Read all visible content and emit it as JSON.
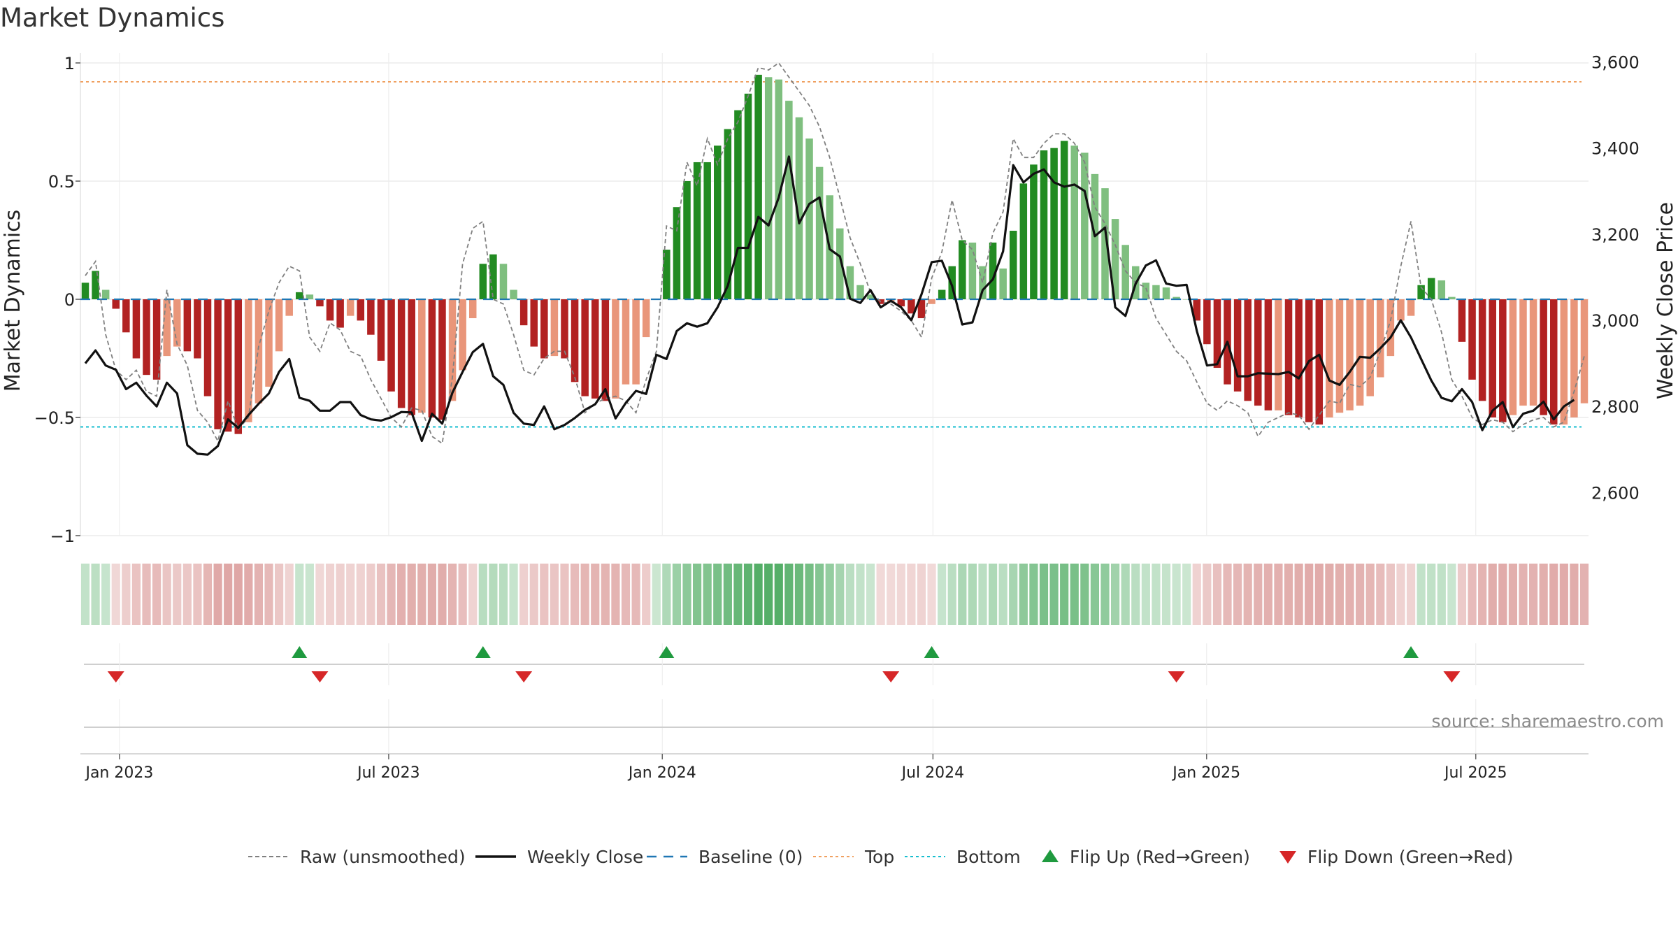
{
  "title": "Market Dynamics",
  "source": "source: sharemaestro.com",
  "colors": {
    "strong_green": "#228b22",
    "light_green": "#7fbf7f",
    "strong_red": "#b22222",
    "light_red": "#e9967a",
    "top_line": "#f0a060",
    "bottom_line": "#17becf",
    "baseline": "#1f77b4",
    "raw": "#808080",
    "close": "#111111",
    "flip_up": "#1f9a3f",
    "flip_down": "#d62728"
  },
  "chart_data": {
    "type": "bar",
    "left_axis": {
      "label": "Market Dynamics",
      "range": [
        -1,
        1
      ],
      "ticks": [
        1,
        0.5,
        0,
        -0.5,
        -1
      ],
      "tick_labels": [
        "1",
        "0.5",
        "0",
        "−0.5",
        "−1"
      ]
    },
    "right_axis": {
      "label": "Weekly Close Price",
      "range": [
        2500,
        3620
      ],
      "ticks": [
        3600,
        3400,
        3200,
        3000,
        2800,
        2600
      ],
      "tick_labels": [
        "3,600",
        "3,400",
        "3,200",
        "3,000",
        "2,800",
        "2,600"
      ]
    },
    "x_axis": {
      "start": "2022-12-09",
      "end": "2025-09-12",
      "ticks": [
        "2023-01-01",
        "2023-07-01",
        "2024-01-01",
        "2024-07-01",
        "2025-01-01",
        "2025-07-01"
      ],
      "tick_labels": [
        "Jan 2023",
        "Jul 2023",
        "Jan 2024",
        "Jul 2024",
        "Jan 2025",
        "Jul 2025"
      ]
    },
    "reference_lines": {
      "top": 0.92,
      "bottom": -0.54,
      "baseline": 0
    },
    "smoothed": [
      0.07,
      0.12,
      0.04,
      -0.04,
      -0.14,
      -0.25,
      -0.32,
      -0.34,
      -0.24,
      -0.2,
      -0.22,
      -0.25,
      -0.41,
      -0.55,
      -0.56,
      -0.57,
      -0.52,
      -0.44,
      -0.37,
      -0.22,
      -0.07,
      0.03,
      0.02,
      -0.03,
      -0.09,
      -0.12,
      -0.07,
      -0.09,
      -0.15,
      -0.26,
      -0.39,
      -0.46,
      -0.49,
      -0.48,
      -0.5,
      -0.51,
      -0.43,
      -0.3,
      -0.08,
      0.15,
      0.19,
      0.15,
      0.04,
      -0.11,
      -0.2,
      -0.25,
      -0.24,
      -0.25,
      -0.35,
      -0.41,
      -0.42,
      -0.43,
      -0.42,
      -0.36,
      -0.36,
      -0.16,
      0.0,
      0.21,
      0.39,
      0.5,
      0.58,
      0.58,
      0.65,
      0.72,
      0.8,
      0.87,
      0.95,
      0.94,
      0.93,
      0.84,
      0.77,
      0.68,
      0.56,
      0.44,
      0.3,
      0.14,
      0.06,
      0.02,
      -0.02,
      -0.01,
      -0.03,
      -0.06,
      -0.08,
      -0.02,
      0.04,
      0.14,
      0.25,
      0.24,
      0.14,
      0.24,
      0.13,
      0.29,
      0.49,
      0.57,
      0.63,
      0.64,
      0.67,
      0.65,
      0.62,
      0.53,
      0.47,
      0.34,
      0.23,
      0.14,
      0.07,
      0.06,
      0.05,
      0.01,
      0.0,
      -0.09,
      -0.19,
      -0.29,
      -0.36,
      -0.39,
      -0.43,
      -0.45,
      -0.47,
      -0.47,
      -0.49,
      -0.5,
      -0.52,
      -0.53,
      -0.5,
      -0.48,
      -0.47,
      -0.45,
      -0.41,
      -0.33,
      -0.24,
      -0.09,
      -0.07,
      0.06,
      0.09,
      0.08,
      0.01,
      -0.18,
      -0.34,
      -0.43,
      -0.5,
      -0.52,
      -0.49,
      -0.45,
      -0.45,
      -0.49,
      -0.53,
      -0.53,
      -0.5,
      -0.44
    ],
    "raw": [
      0.1,
      0.16,
      -0.15,
      -0.3,
      -0.34,
      -0.3,
      -0.39,
      -0.41,
      0.04,
      -0.19,
      -0.28,
      -0.47,
      -0.52,
      -0.6,
      -0.43,
      -0.55,
      -0.5,
      -0.2,
      -0.05,
      0.07,
      0.14,
      0.12,
      -0.16,
      -0.22,
      -0.1,
      -0.13,
      -0.22,
      -0.24,
      -0.34,
      -0.42,
      -0.5,
      -0.54,
      -0.46,
      -0.47,
      -0.58,
      -0.61,
      -0.33,
      0.15,
      0.3,
      0.33,
      0.0,
      -0.02,
      -0.15,
      -0.3,
      -0.32,
      -0.25,
      -0.22,
      -0.22,
      -0.33,
      -0.48,
      -0.44,
      -0.42,
      -0.41,
      -0.43,
      -0.48,
      -0.34,
      -0.22,
      0.31,
      0.29,
      0.58,
      0.48,
      0.68,
      0.57,
      0.68,
      0.75,
      0.86,
      0.98,
      0.97,
      1.0,
      0.94,
      0.88,
      0.82,
      0.73,
      0.6,
      0.43,
      0.26,
      0.15,
      0.03,
      -0.01,
      -0.02,
      -0.05,
      -0.09,
      -0.16,
      0.09,
      0.2,
      0.42,
      0.25,
      0.21,
      0.07,
      0.28,
      0.37,
      0.68,
      0.6,
      0.6,
      0.66,
      0.7,
      0.7,
      0.66,
      0.58,
      0.39,
      0.32,
      0.23,
      0.12,
      0.07,
      0.05,
      -0.08,
      -0.15,
      -0.22,
      -0.26,
      -0.35,
      -0.44,
      -0.47,
      -0.43,
      -0.45,
      -0.48,
      -0.58,
      -0.52,
      -0.5,
      -0.48,
      -0.49,
      -0.55,
      -0.49,
      -0.43,
      -0.44,
      -0.36,
      -0.37,
      -0.33,
      -0.22,
      -0.09,
      0.14,
      0.33,
      0.05,
      0.0,
      -0.14,
      -0.34,
      -0.41,
      -0.5,
      -0.53,
      -0.51,
      -0.52,
      -0.56,
      -0.53,
      -0.51,
      -0.5,
      -0.54,
      -0.52,
      -0.39,
      -0.24
    ],
    "weekly_close": [
      2900,
      2930,
      2895,
      2885,
      2840,
      2855,
      2825,
      2800,
      2855,
      2830,
      2710,
      2690,
      2688,
      2708,
      2770,
      2750,
      2780,
      2806,
      2830,
      2880,
      2910,
      2820,
      2813,
      2790,
      2790,
      2810,
      2810,
      2780,
      2770,
      2767,
      2775,
      2787,
      2786,
      2720,
      2783,
      2760,
      2832,
      2880,
      2926,
      2945,
      2870,
      2850,
      2785,
      2760,
      2757,
      2800,
      2747,
      2757,
      2773,
      2792,
      2805,
      2840,
      2772,
      2808,
      2836,
      2829,
      2920,
      2910,
      2975,
      2993,
      2985,
      2993,
      3030,
      3080,
      3168,
      3168,
      3240,
      3220,
      3285,
      3380,
      3225,
      3270,
      3285,
      3165,
      3148,
      3050,
      3040,
      3070,
      3030,
      3045,
      3030,
      3000,
      3060,
      3135,
      3138,
      3080,
      2990,
      2995,
      3070,
      3095,
      3160,
      3360,
      3320,
      3340,
      3350,
      3320,
      3310,
      3315,
      3300,
      3195,
      3215,
      3030,
      3010,
      3085,
      3127,
      3139,
      3085,
      3080,
      3082,
      2975,
      2895,
      2898,
      2950,
      2870,
      2870,
      2877,
      2876,
      2875,
      2880,
      2865,
      2905,
      2920,
      2860,
      2850,
      2880,
      2915,
      2913,
      2935,
      2960,
      3000,
      2960,
      2910,
      2860,
      2820,
      2812,
      2840,
      2810,
      2745,
      2790,
      2810,
      2752,
      2783,
      2790,
      2811,
      2770,
      2800,
      2815
    ]
  },
  "flips": {
    "up_indices": [
      21,
      39,
      57,
      83,
      130
    ],
    "down_indices": [
      3,
      23,
      43,
      79,
      107,
      134
    ]
  },
  "legend": [
    {
      "key": "raw",
      "label": "Raw (unsmoothed)"
    },
    {
      "key": "close",
      "label": "Weekly Close"
    },
    {
      "key": "baseline",
      "label": "Baseline (0)"
    },
    {
      "key": "top",
      "label": "Top"
    },
    {
      "key": "bottom",
      "label": "Bottom"
    },
    {
      "key": "flip_up",
      "label": "Flip Up (Red→Green)"
    },
    {
      "key": "flip_down",
      "label": "Flip Down (Green→Red)"
    }
  ]
}
